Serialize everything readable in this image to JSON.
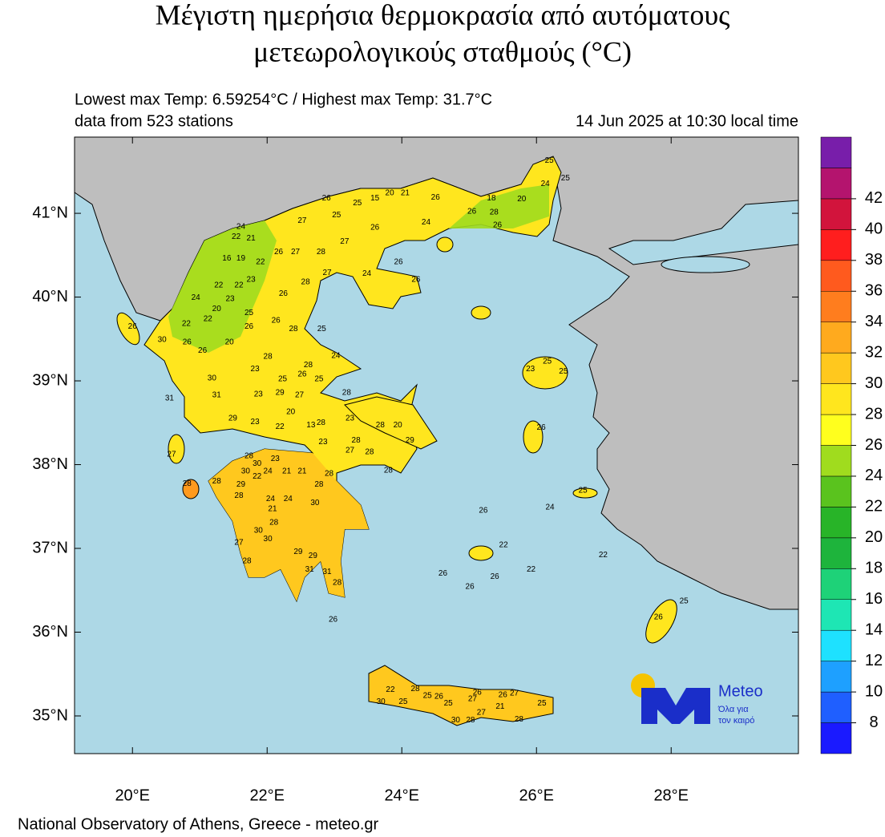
{
  "header": {
    "title_line1": "Μέγιστη ημερήσια θερμοκρασία από αυτόματους",
    "title_line2": "μετεωρολογικούς σταθμούς (°C)"
  },
  "info": {
    "extremes": "Lowest max Temp: 6.59254°C / Highest max Temp: 31.7°C",
    "stations_count": "data from 523 stations",
    "timestamp": "14 Jun 2025 at 10:30 local time"
  },
  "map": {
    "lonlim": [
      19.14,
      29.89
    ],
    "latlim": [
      34.55,
      41.91
    ],
    "lonticks": [
      {
        "value": 20,
        "label": "20°E"
      },
      {
        "value": 22,
        "label": "22°E"
      },
      {
        "value": 24,
        "label": "24°E"
      },
      {
        "value": 26,
        "label": "26°E"
      },
      {
        "value": 28,
        "label": "28°E"
      }
    ],
    "latticks": [
      {
        "value": 35,
        "label": "35°N"
      },
      {
        "value": 36,
        "label": "36°N"
      },
      {
        "value": 37,
        "label": "37°N"
      },
      {
        "value": 38,
        "label": "38°N"
      },
      {
        "value": 39,
        "label": "39°N"
      },
      {
        "value": 40,
        "label": "40°N"
      },
      {
        "value": 41,
        "label": "41°N"
      }
    ],
    "stations": [
      {
        "lon": 26.19,
        "lat": 41.63,
        "value": 25
      },
      {
        "lon": 26.43,
        "lat": 41.42,
        "value": 25
      },
      {
        "lon": 26.13,
        "lat": 41.35,
        "value": 24
      },
      {
        "lon": 25.78,
        "lat": 41.17,
        "value": 20
      },
      {
        "lon": 25.33,
        "lat": 41.18,
        "value": 18
      },
      {
        "lon": 24.5,
        "lat": 41.19,
        "value": 26
      },
      {
        "lon": 23.82,
        "lat": 41.24,
        "value": 20
      },
      {
        "lon": 24.05,
        "lat": 41.24,
        "value": 21
      },
      {
        "lon": 23.6,
        "lat": 41.18,
        "value": 15
      },
      {
        "lon": 23.34,
        "lat": 41.12,
        "value": 25
      },
      {
        "lon": 22.88,
        "lat": 41.18,
        "value": 26
      },
      {
        "lon": 23.03,
        "lat": 40.98,
        "value": 25
      },
      {
        "lon": 22.52,
        "lat": 40.91,
        "value": 27
      },
      {
        "lon": 23.6,
        "lat": 40.83,
        "value": 26
      },
      {
        "lon": 24.36,
        "lat": 40.89,
        "value": 24
      },
      {
        "lon": 25.37,
        "lat": 41.01,
        "value": 28
      },
      {
        "lon": 25.04,
        "lat": 41.02,
        "value": 26
      },
      {
        "lon": 25.42,
        "lat": 40.86,
        "value": 26
      },
      {
        "lon": 21.61,
        "lat": 40.84,
        "value": 24
      },
      {
        "lon": 21.54,
        "lat": 40.72,
        "value": 22
      },
      {
        "lon": 21.76,
        "lat": 40.7,
        "value": 21
      },
      {
        "lon": 21.61,
        "lat": 40.46,
        "value": 19
      },
      {
        "lon": 21.4,
        "lat": 40.46,
        "value": 16
      },
      {
        "lon": 21.9,
        "lat": 40.42,
        "value": 22
      },
      {
        "lon": 22.17,
        "lat": 40.54,
        "value": 26
      },
      {
        "lon": 22.42,
        "lat": 40.54,
        "value": 27
      },
      {
        "lon": 22.8,
        "lat": 40.54,
        "value": 28
      },
      {
        "lon": 23.15,
        "lat": 40.66,
        "value": 27
      },
      {
        "lon": 22.89,
        "lat": 40.29,
        "value": 27
      },
      {
        "lon": 23.48,
        "lat": 40.28,
        "value": 24
      },
      {
        "lon": 23.95,
        "lat": 40.42,
        "value": 26
      },
      {
        "lon": 24.21,
        "lat": 40.21,
        "value": 26
      },
      {
        "lon": 21.28,
        "lat": 40.14,
        "value": 22
      },
      {
        "lon": 21.58,
        "lat": 40.14,
        "value": 22
      },
      {
        "lon": 21.76,
        "lat": 40.21,
        "value": 23
      },
      {
        "lon": 20.94,
        "lat": 39.99,
        "value": 24
      },
      {
        "lon": 21.25,
        "lat": 39.86,
        "value": 20
      },
      {
        "lon": 21.45,
        "lat": 39.98,
        "value": 23
      },
      {
        "lon": 21.73,
        "lat": 39.81,
        "value": 25
      },
      {
        "lon": 22.24,
        "lat": 40.04,
        "value": 26
      },
      {
        "lon": 22.57,
        "lat": 40.18,
        "value": 28
      },
      {
        "lon": 20.8,
        "lat": 39.68,
        "value": 22
      },
      {
        "lon": 21.12,
        "lat": 39.74,
        "value": 22
      },
      {
        "lon": 20.44,
        "lat": 39.49,
        "value": 30
      },
      {
        "lon": 20.81,
        "lat": 39.46,
        "value": 26
      },
      {
        "lon": 21.04,
        "lat": 39.36,
        "value": 26
      },
      {
        "lon": 21.44,
        "lat": 39.46,
        "value": 20
      },
      {
        "lon": 21.73,
        "lat": 39.65,
        "value": 26
      },
      {
        "lon": 22.13,
        "lat": 39.72,
        "value": 26
      },
      {
        "lon": 22.39,
        "lat": 39.62,
        "value": 28
      },
      {
        "lon": 22.81,
        "lat": 39.62,
        "value": 25
      },
      {
        "lon": 22.01,
        "lat": 39.29,
        "value": 28
      },
      {
        "lon": 23.02,
        "lat": 39.3,
        "value": 24
      },
      {
        "lon": 22.61,
        "lat": 39.19,
        "value": 28
      },
      {
        "lon": 21.82,
        "lat": 39.14,
        "value": 23
      },
      {
        "lon": 21.18,
        "lat": 39.03,
        "value": 30
      },
      {
        "lon": 21.25,
        "lat": 38.83,
        "value": 31
      },
      {
        "lon": 22.23,
        "lat": 39.02,
        "value": 25
      },
      {
        "lon": 22.52,
        "lat": 39.08,
        "value": 26
      },
      {
        "lon": 22.77,
        "lat": 39.02,
        "value": 25
      },
      {
        "lon": 21.87,
        "lat": 38.84,
        "value": 23
      },
      {
        "lon": 22.19,
        "lat": 38.86,
        "value": 29
      },
      {
        "lon": 22.48,
        "lat": 38.83,
        "value": 27
      },
      {
        "lon": 23.18,
        "lat": 38.86,
        "value": 28
      },
      {
        "lon": 22.35,
        "lat": 38.63,
        "value": 20
      },
      {
        "lon": 21.49,
        "lat": 38.55,
        "value": 29
      },
      {
        "lon": 21.82,
        "lat": 38.51,
        "value": 23
      },
      {
        "lon": 22.19,
        "lat": 38.45,
        "value": 22
      },
      {
        "lon": 22.65,
        "lat": 38.47,
        "value": 13
      },
      {
        "lon": 22.8,
        "lat": 38.5,
        "value": 28
      },
      {
        "lon": 23.23,
        "lat": 38.55,
        "value": 23
      },
      {
        "lon": 23.68,
        "lat": 38.47,
        "value": 28
      },
      {
        "lon": 23.94,
        "lat": 38.47,
        "value": 20
      },
      {
        "lon": 23.32,
        "lat": 38.29,
        "value": 28
      },
      {
        "lon": 22.83,
        "lat": 38.27,
        "value": 23
      },
      {
        "lon": 24.12,
        "lat": 38.29,
        "value": 29
      },
      {
        "lon": 21.73,
        "lat": 38.1,
        "value": 28
      },
      {
        "lon": 21.85,
        "lat": 38.01,
        "value": 30
      },
      {
        "lon": 21.68,
        "lat": 37.92,
        "value": 30
      },
      {
        "lon": 22.01,
        "lat": 37.92,
        "value": 24
      },
      {
        "lon": 21.85,
        "lat": 37.86,
        "value": 22
      },
      {
        "lon": 22.29,
        "lat": 37.92,
        "value": 21
      },
      {
        "lon": 22.12,
        "lat": 38.07,
        "value": 23
      },
      {
        "lon": 22.52,
        "lat": 37.92,
        "value": 21
      },
      {
        "lon": 23.23,
        "lat": 38.17,
        "value": 27
      },
      {
        "lon": 23.52,
        "lat": 38.15,
        "value": 28
      },
      {
        "lon": 23.8,
        "lat": 37.93,
        "value": 28
      },
      {
        "lon": 21.25,
        "lat": 37.8,
        "value": 28
      },
      {
        "lon": 21.61,
        "lat": 37.76,
        "value": 29
      },
      {
        "lon": 22.77,
        "lat": 37.76,
        "value": 28
      },
      {
        "lon": 22.92,
        "lat": 37.89,
        "value": 28
      },
      {
        "lon": 22.05,
        "lat": 37.59,
        "value": 24
      },
      {
        "lon": 22.31,
        "lat": 37.59,
        "value": 24
      },
      {
        "lon": 22.71,
        "lat": 37.54,
        "value": 30
      },
      {
        "lon": 22.08,
        "lat": 37.47,
        "value": 21
      },
      {
        "lon": 21.58,
        "lat": 37.63,
        "value": 28
      },
      {
        "lon": 22.1,
        "lat": 37.31,
        "value": 28
      },
      {
        "lon": 21.87,
        "lat": 37.21,
        "value": 30
      },
      {
        "lon": 22.01,
        "lat": 37.11,
        "value": 30
      },
      {
        "lon": 21.58,
        "lat": 37.07,
        "value": 27
      },
      {
        "lon": 21.7,
        "lat": 36.85,
        "value": 28
      },
      {
        "lon": 22.46,
        "lat": 36.96,
        "value": 29
      },
      {
        "lon": 22.68,
        "lat": 36.91,
        "value": 29
      },
      {
        "lon": 22.63,
        "lat": 36.75,
        "value": 31
      },
      {
        "lon": 22.89,
        "lat": 36.72,
        "value": 31
      },
      {
        "lon": 23.04,
        "lat": 36.59,
        "value": 28
      },
      {
        "lon": 22.98,
        "lat": 36.15,
        "value": 26
      },
      {
        "lon": 25.91,
        "lat": 39.14,
        "value": 23
      },
      {
        "lon": 26.16,
        "lat": 39.23,
        "value": 25
      },
      {
        "lon": 26.4,
        "lat": 39.11,
        "value": 25
      },
      {
        "lon": 26.07,
        "lat": 38.44,
        "value": 26
      },
      {
        "lon": 26.69,
        "lat": 37.69,
        "value": 25
      },
      {
        "lon": 26.2,
        "lat": 37.49,
        "value": 24
      },
      {
        "lon": 25.21,
        "lat": 37.45,
        "value": 26
      },
      {
        "lon": 25.51,
        "lat": 37.04,
        "value": 22
      },
      {
        "lon": 25.92,
        "lat": 36.75,
        "value": 22
      },
      {
        "lon": 26.99,
        "lat": 36.92,
        "value": 22
      },
      {
        "lon": 27.81,
        "lat": 36.18,
        "value": 26
      },
      {
        "lon": 28.19,
        "lat": 36.37,
        "value": 25
      },
      {
        "lon": 24.61,
        "lat": 36.7,
        "value": 26
      },
      {
        "lon": 25.01,
        "lat": 36.54,
        "value": 26
      },
      {
        "lon": 25.38,
        "lat": 36.66,
        "value": 26
      },
      {
        "lon": 23.83,
        "lat": 35.31,
        "value": 22
      },
      {
        "lon": 23.69,
        "lat": 35.17,
        "value": 30
      },
      {
        "lon": 24.02,
        "lat": 35.17,
        "value": 25
      },
      {
        "lon": 24.2,
        "lat": 35.32,
        "value": 28
      },
      {
        "lon": 24.38,
        "lat": 35.24,
        "value": 25
      },
      {
        "lon": 24.55,
        "lat": 35.23,
        "value": 26
      },
      {
        "lon": 24.69,
        "lat": 35.15,
        "value": 25
      },
      {
        "lon": 25.05,
        "lat": 35.2,
        "value": 27
      },
      {
        "lon": 25.12,
        "lat": 35.28,
        "value": 26
      },
      {
        "lon": 24.8,
        "lat": 34.95,
        "value": 30
      },
      {
        "lon": 25.02,
        "lat": 34.95,
        "value": 28
      },
      {
        "lon": 25.18,
        "lat": 35.04,
        "value": 27
      },
      {
        "lon": 25.46,
        "lat": 35.11,
        "value": 21
      },
      {
        "lon": 25.5,
        "lat": 35.25,
        "value": 26
      },
      {
        "lon": 25.67,
        "lat": 35.27,
        "value": 27
      },
      {
        "lon": 26.08,
        "lat": 35.15,
        "value": 25
      },
      {
        "lon": 25.74,
        "lat": 34.96,
        "value": 28
      },
      {
        "lon": 20.55,
        "lat": 38.79,
        "value": 31
      },
      {
        "lon": 20.58,
        "lat": 38.12,
        "value": 27
      },
      {
        "lon": 20.81,
        "lat": 37.77,
        "value": 28
      },
      {
        "lon": 20.0,
        "lat": 39.65,
        "value": 26
      }
    ]
  },
  "colorbar": {
    "levels": [
      8,
      10,
      12,
      14,
      16,
      18,
      20,
      22,
      24,
      26,
      28,
      30,
      32,
      34,
      36,
      38,
      40,
      42
    ],
    "colors": [
      "#1a1aff",
      "#1f5fff",
      "#1ea0ff",
      "#1ee1ff",
      "#1ee6b4",
      "#1ed278",
      "#1eb43c",
      "#28b428",
      "#5ac31e",
      "#a0dc1e",
      "#ffff1e",
      "#ffe61e",
      "#ffc81e",
      "#ffaa1e",
      "#ff7d1e",
      "#ff5a1e",
      "#ff1e1e",
      "#d2143c",
      "#b4146e",
      "#781eaa"
    ]
  },
  "logo": {
    "name": "Meteo",
    "tagline_1": "Όλα για",
    "tagline_2": "τον καιρό"
  },
  "footer": "National Observatory of Athens, Greece - meteo.gr"
}
